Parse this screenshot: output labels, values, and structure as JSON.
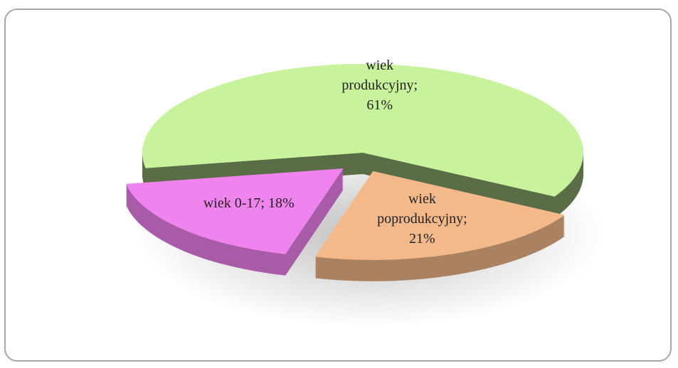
{
  "chart_data": {
    "type": "pie",
    "categories": [
      "wiek produkcyjny",
      "wiek poprodukcyjny",
      "wiek 0-17"
    ],
    "values": [
      61,
      21,
      18
    ],
    "value_labels": [
      "wiek produkcyjny; 61%",
      "wiek poprodukcyjny; 21%",
      "wiek 0-17; 18%"
    ],
    "colors": [
      "#c8f29c",
      "#f4b98a",
      "#f084ee"
    ]
  }
}
